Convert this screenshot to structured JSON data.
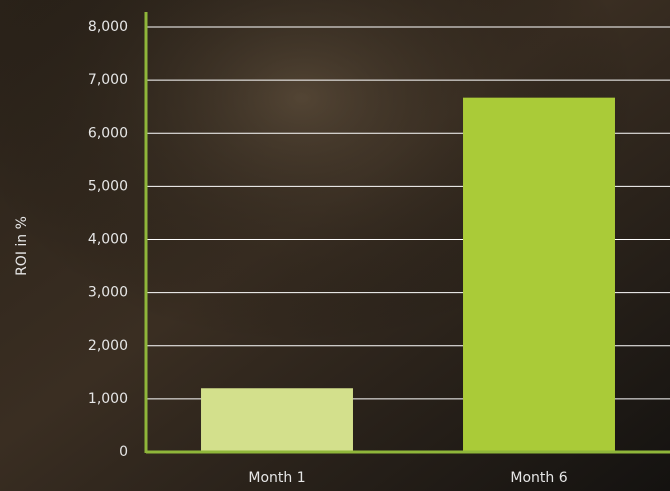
{
  "chart_data": {
    "type": "bar",
    "y_label": "ROI in %",
    "categories": [
      "Month 1",
      "Month 6"
    ],
    "values": [
      1200,
      6670
    ],
    "colors": [
      "#d3e08c",
      "#aacb38"
    ],
    "ylim": [
      0,
      8000
    ],
    "yticks": [
      0,
      {
        "value": 1000,
        "label": "1,000"
      },
      {
        "value": 2000,
        "label": "2,000"
      },
      {
        "value": 3000,
        "label": "3,000"
      },
      {
        "value": 4000,
        "label": "4,000"
      },
      {
        "value": 5000,
        "label": "5,000"
      },
      {
        "value": 6000,
        "label": "6,000"
      },
      {
        "value": 7000,
        "label": "7,000"
      },
      {
        "value": 8000,
        "label": "8,000"
      }
    ],
    "grid": true
  }
}
